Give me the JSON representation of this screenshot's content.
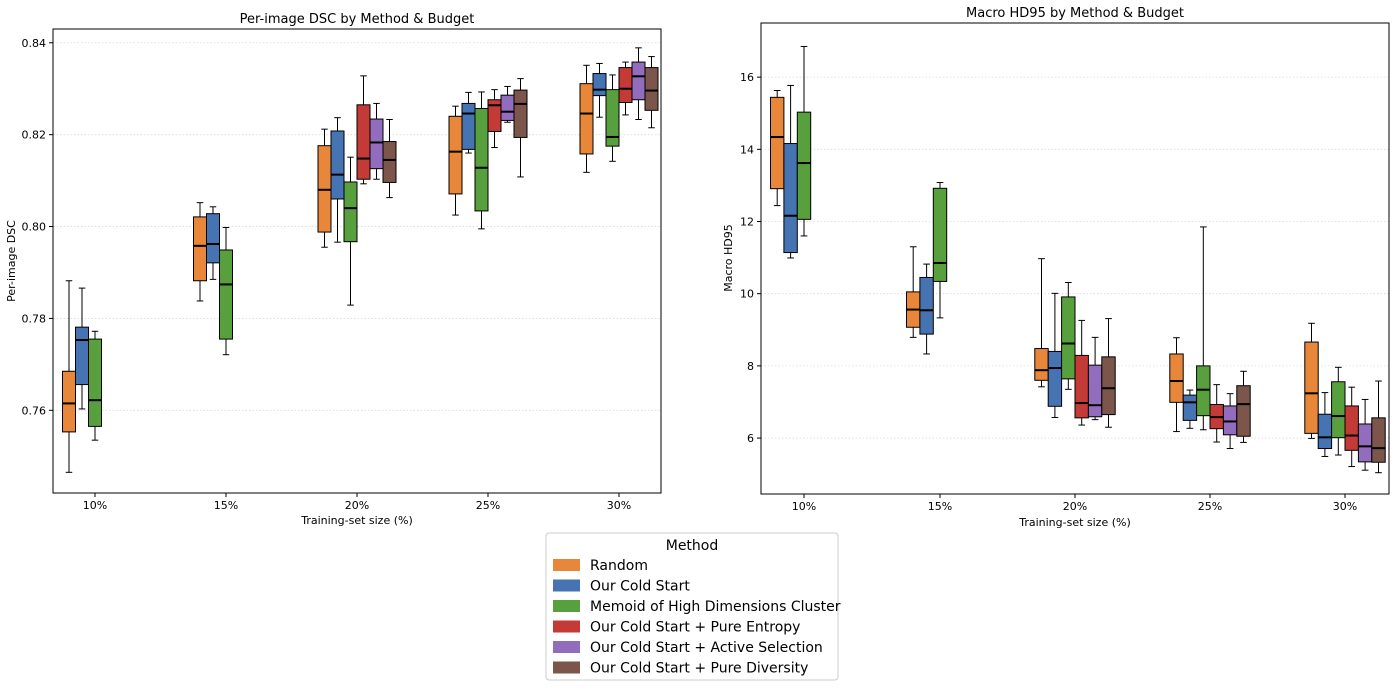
{
  "chart_data": [
    {
      "type": "box",
      "title": "Per-image DSC by Method & Budget",
      "xlabel": "Training-set size (%)",
      "ylabel": "Per-image DSC",
      "categories": [
        "10%",
        "15%",
        "20%",
        "25%",
        "30%"
      ],
      "ylim": [
        0.742,
        0.843
      ],
      "yticks": [
        0.76,
        0.78,
        0.8,
        0.82,
        0.84
      ],
      "ytick_labels": [
        "0.76",
        "0.78",
        "0.80",
        "0.82",
        "0.84"
      ],
      "grid": "y-dotted",
      "series": [
        {
          "name": "Random",
          "boxes": [
            {
              "category": "10%",
              "whislo": 0.7465,
              "q1": 0.7553,
              "med": 0.7615,
              "q3": 0.7685,
              "whishi": 0.7882
            },
            {
              "category": "15%",
              "whislo": 0.7838,
              "q1": 0.7882,
              "med": 0.7958,
              "q3": 0.8021,
              "whishi": 0.8052
            },
            {
              "category": "20%",
              "whislo": 0.7955,
              "q1": 0.7988,
              "med": 0.808,
              "q3": 0.8176,
              "whishi": 0.8212
            },
            {
              "category": "25%",
              "whislo": 0.8025,
              "q1": 0.8071,
              "med": 0.8163,
              "q3": 0.824,
              "whishi": 0.8262
            },
            {
              "category": "30%",
              "whislo": 0.8118,
              "q1": 0.8158,
              "med": 0.8246,
              "q3": 0.8311,
              "whishi": 0.8351
            }
          ]
        },
        {
          "name": "Our Cold Start",
          "boxes": [
            {
              "category": "10%",
              "whislo": 0.7603,
              "q1": 0.7656,
              "med": 0.7753,
              "q3": 0.7781,
              "whishi": 0.7866
            },
            {
              "category": "15%",
              "whislo": 0.7885,
              "q1": 0.7921,
              "med": 0.7962,
              "q3": 0.8028,
              "whishi": 0.8043
            },
            {
              "category": "20%",
              "whislo": 0.7966,
              "q1": 0.806,
              "med": 0.8113,
              "q3": 0.8208,
              "whishi": 0.8237
            },
            {
              "category": "25%",
              "whislo": 0.816,
              "q1": 0.8168,
              "med": 0.8246,
              "q3": 0.8268,
              "whishi": 0.8292
            },
            {
              "category": "30%",
              "whislo": 0.8238,
              "q1": 0.8285,
              "med": 0.8298,
              "q3": 0.8333,
              "whishi": 0.8355
            }
          ]
        },
        {
          "name": "Memoid of High Dimensions Cluster",
          "boxes": [
            {
              "category": "10%",
              "whislo": 0.7535,
              "q1": 0.7565,
              "med": 0.7622,
              "q3": 0.7755,
              "whishi": 0.7772
            },
            {
              "category": "15%",
              "whislo": 0.7721,
              "q1": 0.7755,
              "med": 0.7874,
              "q3": 0.7949,
              "whishi": 0.7998
            },
            {
              "category": "20%",
              "whislo": 0.7829,
              "q1": 0.7967,
              "med": 0.804,
              "q3": 0.8097,
              "whishi": 0.8151
            },
            {
              "category": "25%",
              "whislo": 0.7995,
              "q1": 0.8034,
              "med": 0.8128,
              "q3": 0.8257,
              "whishi": 0.8293
            },
            {
              "category": "30%",
              "whislo": 0.8142,
              "q1": 0.8175,
              "med": 0.8195,
              "q3": 0.8298,
              "whishi": 0.833
            }
          ]
        },
        {
          "name": "Our Cold Start + Pure Entropy",
          "boxes": [
            {
              "category": "20%",
              "whislo": 0.8093,
              "q1": 0.8103,
              "med": 0.8148,
              "q3": 0.8265,
              "whishi": 0.8328
            },
            {
              "category": "25%",
              "whislo": 0.8172,
              "q1": 0.8207,
              "med": 0.8264,
              "q3": 0.8276,
              "whishi": 0.8298
            },
            {
              "category": "30%",
              "whislo": 0.8243,
              "q1": 0.827,
              "med": 0.83,
              "q3": 0.8346,
              "whishi": 0.8358
            }
          ]
        },
        {
          "name": "Our Cold Start + Active Selection",
          "boxes": [
            {
              "category": "20%",
              "whislo": 0.8103,
              "q1": 0.8126,
              "med": 0.8183,
              "q3": 0.8234,
              "whishi": 0.8268
            },
            {
              "category": "25%",
              "whislo": 0.8227,
              "q1": 0.8231,
              "med": 0.825,
              "q3": 0.8286,
              "whishi": 0.8305
            },
            {
              "category": "30%",
              "whislo": 0.8233,
              "q1": 0.8276,
              "med": 0.8327,
              "q3": 0.8358,
              "whishi": 0.8389
            }
          ]
        },
        {
          "name": "Our Cold Start + Pure Diversity",
          "boxes": [
            {
              "category": "20%",
              "whislo": 0.8063,
              "q1": 0.8096,
              "med": 0.8145,
              "q3": 0.8185,
              "whishi": 0.8233
            },
            {
              "category": "25%",
              "whislo": 0.8108,
              "q1": 0.8194,
              "med": 0.8267,
              "q3": 0.8297,
              "whishi": 0.8322
            },
            {
              "category": "30%",
              "whislo": 0.8215,
              "q1": 0.8253,
              "med": 0.8296,
              "q3": 0.8346,
              "whishi": 0.837
            }
          ]
        }
      ]
    },
    {
      "type": "box",
      "title": "Macro HD95 by Method & Budget",
      "xlabel": "Training-set size (%)",
      "ylabel": "Macro HD95",
      "categories": [
        "10%",
        "15%",
        "20%",
        "25%",
        "30%"
      ],
      "ylim": [
        4.45,
        17.5
      ],
      "yticks": [
        6,
        8,
        10,
        12,
        14,
        16
      ],
      "ytick_labels": [
        "6",
        "8",
        "10",
        "12",
        "14",
        "16"
      ],
      "grid": "y-dotted",
      "series": [
        {
          "name": "Random",
          "boxes": [
            {
              "category": "10%",
              "whislo": 12.44,
              "q1": 12.91,
              "med": 14.34,
              "q3": 15.44,
              "whishi": 15.63
            },
            {
              "category": "15%",
              "whislo": 8.79,
              "q1": 9.07,
              "med": 9.56,
              "q3": 10.05,
              "whishi": 11.3
            },
            {
              "category": "20%",
              "whislo": 7.42,
              "q1": 7.6,
              "med": 7.88,
              "q3": 8.48,
              "whishi": 10.97
            },
            {
              "category": "25%",
              "whislo": 6.18,
              "q1": 6.99,
              "med": 7.58,
              "q3": 8.33,
              "whishi": 8.78
            },
            {
              "category": "30%",
              "whislo": 5.99,
              "q1": 6.13,
              "med": 7.24,
              "q3": 8.66,
              "whishi": 9.18
            }
          ]
        },
        {
          "name": "Our Cold Start",
          "boxes": [
            {
              "category": "10%",
              "whislo": 10.99,
              "q1": 11.14,
              "med": 12.16,
              "q3": 14.16,
              "whishi": 15.77
            },
            {
              "category": "15%",
              "whislo": 8.33,
              "q1": 8.88,
              "med": 9.54,
              "q3": 10.45,
              "whishi": 10.82
            },
            {
              "category": "20%",
              "whislo": 6.57,
              "q1": 6.88,
              "med": 7.94,
              "q3": 8.4,
              "whishi": 10.01
            },
            {
              "category": "25%",
              "whislo": 6.27,
              "q1": 6.49,
              "med": 6.99,
              "q3": 7.19,
              "whishi": 7.33
            },
            {
              "category": "30%",
              "whislo": 5.49,
              "q1": 5.71,
              "med": 6.02,
              "q3": 6.66,
              "whishi": 7.26
            }
          ]
        },
        {
          "name": "Memoid of High Dimensions Cluster",
          "boxes": [
            {
              "category": "10%",
              "whislo": 11.6,
              "q1": 12.06,
              "med": 13.62,
              "q3": 15.03,
              "whishi": 16.85
            },
            {
              "category": "15%",
              "whislo": 9.33,
              "q1": 10.34,
              "med": 10.85,
              "q3": 12.92,
              "whishi": 13.08
            },
            {
              "category": "20%",
              "whislo": 7.35,
              "q1": 7.64,
              "med": 8.62,
              "q3": 9.91,
              "whishi": 10.31
            },
            {
              "category": "25%",
              "whislo": 6.23,
              "q1": 6.62,
              "med": 7.34,
              "q3": 8.0,
              "whishi": 11.85
            },
            {
              "category": "30%",
              "whislo": 5.53,
              "q1": 6.01,
              "med": 6.61,
              "q3": 7.56,
              "whishi": 7.96
            }
          ]
        },
        {
          "name": "Our Cold Start + Pure Entropy",
          "boxes": [
            {
              "category": "20%",
              "whislo": 6.36,
              "q1": 6.56,
              "med": 6.97,
              "q3": 8.29,
              "whishi": 9.26
            },
            {
              "category": "25%",
              "whislo": 5.89,
              "q1": 6.26,
              "med": 6.58,
              "q3": 6.93,
              "whishi": 7.48
            },
            {
              "category": "30%",
              "whislo": 5.21,
              "q1": 5.66,
              "med": 6.07,
              "q3": 6.89,
              "whishi": 7.41
            }
          ]
        },
        {
          "name": "Our Cold Start + Active Selection",
          "boxes": [
            {
              "category": "20%",
              "whislo": 6.51,
              "q1": 6.59,
              "med": 6.91,
              "q3": 8.02,
              "whishi": 8.79
            },
            {
              "category": "25%",
              "whislo": 5.71,
              "q1": 6.09,
              "med": 6.46,
              "q3": 6.89,
              "whishi": 7.23
            },
            {
              "category": "30%",
              "whislo": 5.11,
              "q1": 5.34,
              "med": 5.77,
              "q3": 6.39,
              "whishi": 7.07
            }
          ]
        },
        {
          "name": "Our Cold Start + Pure Diversity",
          "boxes": [
            {
              "category": "20%",
              "whislo": 6.3,
              "q1": 6.65,
              "med": 7.38,
              "q3": 8.25,
              "whishi": 9.31
            },
            {
              "category": "25%",
              "whislo": 5.88,
              "q1": 6.05,
              "med": 6.94,
              "q3": 7.45,
              "whishi": 7.85
            },
            {
              "category": "30%",
              "whislo": 5.04,
              "q1": 5.33,
              "med": 5.72,
              "q3": 6.56,
              "whishi": 7.58
            }
          ]
        }
      ]
    }
  ],
  "legend": {
    "title": "Method",
    "placement": "bottom-center",
    "entries": [
      {
        "label": "Random",
        "color": "#e8873a"
      },
      {
        "label": "Our Cold Start",
        "color": "#4674b3"
      },
      {
        "label": "Memoid of High Dimensions Cluster",
        "color": "#58a03e"
      },
      {
        "label": "Our Cold Start + Pure Entropy",
        "color": "#c33a36"
      },
      {
        "label": "Our Cold Start + Active Selection",
        "color": "#936dbd"
      },
      {
        "label": "Our Cold Start + Pure Diversity",
        "color": "#7c554b"
      }
    ]
  }
}
